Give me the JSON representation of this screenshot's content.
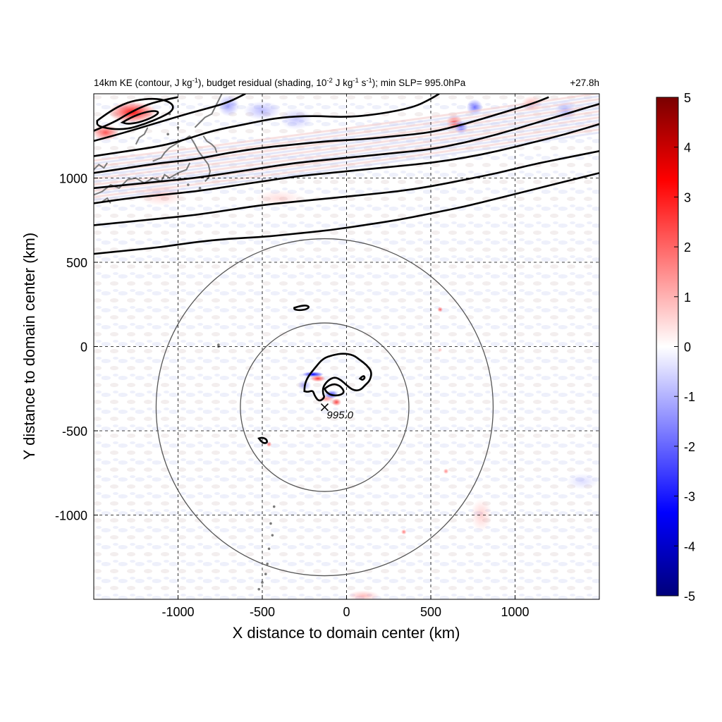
{
  "chart_data": {
    "type": "heatmap",
    "title_main": "14km KE (contour, J kg",
    "title_sup1": "-1",
    "title_mid1": "), budget residual (shading, 10",
    "title_sup2": "-2",
    "title_mid2": " J kg",
    "title_sup3": "-1",
    "title_mid3": " s",
    "title_sup4": "-1",
    "title_end": "); min SLP= 995.0hPa",
    "time_label": "+27.8h",
    "xlabel": "X distance to domain center (km)",
    "ylabel": "Y distance to domain center (km)",
    "xlim": [
      -1500,
      1500
    ],
    "ylim": [
      -1500,
      1500
    ],
    "x_ticks": [
      -1000,
      -500,
      0,
      500,
      1000
    ],
    "x_tick_labels": [
      "-1000",
      "-500",
      "0",
      "500",
      "1000"
    ],
    "y_ticks": [
      -1000,
      -500,
      0,
      500,
      1000
    ],
    "y_tick_labels": [
      "-1000",
      "-500",
      "0",
      "500",
      "1000"
    ],
    "grid": true,
    "colorbar": {
      "range": [
        -5,
        5
      ],
      "ticks": [
        5,
        4,
        3,
        2,
        1,
        0,
        -1,
        -2,
        -3,
        -4,
        -5
      ],
      "tick_labels": [
        "5",
        "4",
        "3",
        "2",
        "1",
        "0",
        "-1",
        "-2",
        "-3",
        "-4",
        "-5"
      ],
      "colors": [
        "#00007a",
        "#0000ff",
        "#7f7fff",
        "#ffffff",
        "#ff7f7f",
        "#ff0000",
        "#7a0000"
      ]
    },
    "storm_center": {
      "x": -130,
      "y": -360,
      "label": "995.0"
    },
    "range_circles": {
      "center": [
        -130,
        -360
      ],
      "radii_km": [
        500,
        1000
      ]
    },
    "residual_features": [
      {
        "x": -200,
        "y": -165,
        "sx": 40,
        "sy": 10,
        "value": -4.8
      },
      {
        "x": -170,
        "y": -190,
        "sx": 28,
        "sy": 12,
        "value": 3.5
      },
      {
        "x": -90,
        "y": -285,
        "sx": 25,
        "sy": 16,
        "value": -3.5
      },
      {
        "x": -60,
        "y": -330,
        "sx": 18,
        "sy": 14,
        "value": 3.2
      },
      {
        "x": -120,
        "y": -310,
        "sx": 30,
        "sy": 12,
        "value": 2.0
      },
      {
        "x": -250,
        "y": -230,
        "sx": 25,
        "sy": 20,
        "value": -1.5
      },
      {
        "x": -460,
        "y": -580,
        "sx": 10,
        "sy": 10,
        "value": 2.6
      },
      {
        "x": 555,
        "y": 220,
        "sx": 10,
        "sy": 10,
        "value": 2.8
      },
      {
        "x": 555,
        "y": -20,
        "sx": 8,
        "sy": 8,
        "value": 1.2
      },
      {
        "x": 590,
        "y": -740,
        "sx": 10,
        "sy": 10,
        "value": 2.2
      },
      {
        "x": 340,
        "y": -1100,
        "sx": 10,
        "sy": 10,
        "value": 2.4
      },
      {
        "x": 800,
        "y": -1000,
        "sx": 40,
        "sy": 60,
        "value": 0.8
      },
      {
        "x": -1270,
        "y": 1390,
        "sx": 90,
        "sy": 40,
        "value": 4.2
      },
      {
        "x": -1430,
        "y": 1270,
        "sx": 50,
        "sy": 30,
        "value": 3.0
      },
      {
        "x": -700,
        "y": 1430,
        "sx": 40,
        "sy": 40,
        "value": -1.6
      },
      {
        "x": -500,
        "y": 1400,
        "sx": 70,
        "sy": 35,
        "value": -1.2
      },
      {
        "x": -300,
        "y": 1350,
        "sx": 60,
        "sy": 40,
        "value": -1.0
      },
      {
        "x": 640,
        "y": 1330,
        "sx": 30,
        "sy": 30,
        "value": 3.2
      },
      {
        "x": 680,
        "y": 1300,
        "sx": 25,
        "sy": 25,
        "value": -3.0
      },
      {
        "x": 760,
        "y": 1420,
        "sx": 30,
        "sy": 30,
        "value": -2.4
      },
      {
        "x": 1300,
        "y": 1400,
        "sx": 40,
        "sy": 40,
        "value": -1.4
      },
      {
        "x": 1100,
        "y": 1440,
        "sx": 40,
        "sy": 30,
        "value": 1.4
      },
      {
        "x": -1100,
        "y": 900,
        "sx": 90,
        "sy": 40,
        "value": 0.8
      },
      {
        "x": -400,
        "y": 880,
        "sx": 90,
        "sy": 30,
        "value": 0.6
      },
      {
        "x": 100,
        "y": -1480,
        "sx": 60,
        "sy": 20,
        "value": 1.2
      },
      {
        "x": 1400,
        "y": -800,
        "sx": 60,
        "sy": 30,
        "value": -0.6
      }
    ],
    "contours": {
      "outer_jets": [
        [
          [
            -1500,
            1280
          ],
          [
            -1380,
            1330
          ],
          [
            -1300,
            1380
          ],
          [
            -1200,
            1430
          ],
          [
            -1100,
            1460
          ],
          [
            -1000,
            1480
          ]
        ],
        [
          [
            -1500,
            1220
          ],
          [
            -1350,
            1260
          ],
          [
            -1150,
            1320
          ],
          [
            -950,
            1380
          ],
          [
            -800,
            1420
          ],
          [
            -700,
            1450
          ],
          [
            -600,
            1500
          ]
        ],
        [
          [
            -1500,
            1130
          ],
          [
            -1300,
            1160
          ],
          [
            -1100,
            1190
          ],
          [
            -950,
            1230
          ],
          [
            -800,
            1280
          ],
          [
            -600,
            1320
          ],
          [
            -400,
            1360
          ],
          [
            -200,
            1370
          ],
          [
            0,
            1360
          ],
          [
            200,
            1380
          ],
          [
            400,
            1420
          ],
          [
            500,
            1470
          ],
          [
            550,
            1500
          ]
        ],
        [
          [
            -1500,
            1030
          ],
          [
            -1300,
            1060
          ],
          [
            -1100,
            1090
          ],
          [
            -900,
            1110
          ],
          [
            -700,
            1150
          ],
          [
            -500,
            1180
          ],
          [
            -300,
            1200
          ],
          [
            -100,
            1220
          ],
          [
            100,
            1230
          ],
          [
            300,
            1250
          ],
          [
            500,
            1270
          ],
          [
            700,
            1320
          ],
          [
            900,
            1380
          ],
          [
            1100,
            1440
          ],
          [
            1200,
            1480
          ]
        ],
        [
          [
            -1500,
            940
          ],
          [
            -1300,
            960
          ],
          [
            -1100,
            980
          ],
          [
            -900,
            1000
          ],
          [
            -700,
            1030
          ],
          [
            -500,
            1060
          ],
          [
            -300,
            1090
          ],
          [
            -100,
            1110
          ],
          [
            100,
            1130
          ],
          [
            300,
            1150
          ],
          [
            500,
            1170
          ],
          [
            700,
            1210
          ],
          [
            900,
            1260
          ],
          [
            1100,
            1320
          ],
          [
            1300,
            1380
          ],
          [
            1500,
            1440
          ]
        ],
        [
          [
            -1500,
            850
          ],
          [
            -1300,
            880
          ],
          [
            -1100,
            900
          ],
          [
            -900,
            920
          ],
          [
            -700,
            950
          ],
          [
            -500,
            980
          ],
          [
            -300,
            1010
          ],
          [
            -100,
            1030
          ],
          [
            100,
            1050
          ],
          [
            300,
            1070
          ],
          [
            500,
            1090
          ],
          [
            700,
            1120
          ],
          [
            900,
            1160
          ],
          [
            1100,
            1210
          ],
          [
            1300,
            1260
          ],
          [
            1500,
            1320
          ]
        ],
        [
          [
            -1500,
            720
          ],
          [
            -1300,
            740
          ],
          [
            -1100,
            760
          ],
          [
            -900,
            780
          ],
          [
            -700,
            810
          ],
          [
            -500,
            840
          ],
          [
            -300,
            860
          ],
          [
            -100,
            880
          ],
          [
            100,
            900
          ],
          [
            300,
            920
          ],
          [
            500,
            950
          ],
          [
            700,
            990
          ],
          [
            900,
            1030
          ],
          [
            1100,
            1080
          ],
          [
            1300,
            1120
          ],
          [
            1500,
            1160
          ]
        ],
        [
          [
            -1500,
            550
          ],
          [
            -1300,
            570
          ],
          [
            -1100,
            590
          ],
          [
            -900,
            620
          ],
          [
            -700,
            640
          ],
          [
            -500,
            650
          ],
          [
            -300,
            670
          ],
          [
            -100,
            690
          ],
          [
            100,
            720
          ],
          [
            300,
            750
          ],
          [
            500,
            790
          ],
          [
            700,
            830
          ],
          [
            900,
            880
          ],
          [
            1100,
            930
          ],
          [
            1300,
            980
          ],
          [
            1500,
            1030
          ]
        ]
      ],
      "closed": [
        [
          [
            -1330,
            1330
          ],
          [
            -1280,
            1360
          ],
          [
            -1200,
            1390
          ],
          [
            -1140,
            1400
          ],
          [
            -1110,
            1390
          ],
          [
            -1150,
            1360
          ],
          [
            -1230,
            1330
          ],
          [
            -1300,
            1320
          ],
          [
            -1330,
            1330
          ]
        ],
        [
          [
            -1480,
            1340
          ],
          [
            -1400,
            1400
          ],
          [
            -1300,
            1450
          ],
          [
            -1200,
            1470
          ],
          [
            -1100,
            1470
          ],
          [
            -1030,
            1440
          ],
          [
            -1030,
            1400
          ],
          [
            -1100,
            1360
          ],
          [
            -1200,
            1320
          ],
          [
            -1300,
            1290
          ],
          [
            -1400,
            1290
          ],
          [
            -1480,
            1310
          ],
          [
            -1480,
            1340
          ]
        ],
        [
          [
            -310,
            230
          ],
          [
            -280,
            240
          ],
          [
            -240,
            245
          ],
          [
            -220,
            235
          ],
          [
            -240,
            220
          ],
          [
            -280,
            215
          ],
          [
            -310,
            220
          ],
          [
            -310,
            230
          ]
        ],
        [
          [
            -250,
            -265
          ],
          [
            -250,
            -230
          ],
          [
            -230,
            -180
          ],
          [
            -190,
            -130
          ],
          [
            -140,
            -70
          ],
          [
            -80,
            -50
          ],
          [
            -20,
            -40
          ],
          [
            40,
            -50
          ],
          [
            80,
            -80
          ],
          [
            120,
            -110
          ],
          [
            150,
            -150
          ],
          [
            140,
            -200
          ],
          [
            110,
            -230
          ],
          [
            80,
            -260
          ],
          [
            40,
            -260
          ],
          [
            0,
            -230
          ],
          [
            -30,
            -200
          ],
          [
            -70,
            -180
          ],
          [
            -110,
            -200
          ],
          [
            -140,
            -240
          ],
          [
            -140,
            -280
          ],
          [
            -130,
            -300
          ],
          [
            -150,
            -320
          ],
          [
            -170,
            -320
          ],
          [
            -190,
            -290
          ],
          [
            -200,
            -260
          ],
          [
            -230,
            -270
          ],
          [
            -250,
            -265
          ]
        ],
        [
          [
            -130,
            -250
          ],
          [
            -90,
            -220
          ],
          [
            -40,
            -230
          ],
          [
            -10,
            -270
          ],
          [
            -40,
            -290
          ],
          [
            -90,
            -290
          ],
          [
            -120,
            -270
          ],
          [
            -130,
            -250
          ]
        ],
        [
          [
            80,
            -190
          ],
          [
            100,
            -170
          ],
          [
            110,
            -185
          ],
          [
            95,
            -200
          ],
          [
            80,
            -190
          ]
        ],
        [
          [
            -520,
            -545
          ],
          [
            -510,
            -560
          ],
          [
            -490,
            -575
          ],
          [
            -470,
            -570
          ],
          [
            -475,
            -550
          ],
          [
            -500,
            -540
          ],
          [
            -520,
            -545
          ]
        ]
      ]
    },
    "coastline": [
      [
        [
          -1500,
          900
        ],
        [
          -1450,
          920
        ],
        [
          -1400,
          960
        ],
        [
          -1350,
          940
        ],
        [
          -1300,
          990
        ],
        [
          -1250,
          1000
        ],
        [
          -1200,
          970
        ],
        [
          -1150,
          1000
        ],
        [
          -1100,
          980
        ]
      ],
      [
        [
          -1100,
          980
        ],
        [
          -1080,
          1020
        ],
        [
          -1050,
          1000
        ],
        [
          -1000,
          1030
        ],
        [
          -950,
          1050
        ],
        [
          -930,
          1090
        ]
      ],
      [
        [
          -1150,
          1100
        ],
        [
          -1100,
          1120
        ],
        [
          -1080,
          1150
        ],
        [
          -1050,
          1180
        ],
        [
          -1000,
          1210
        ],
        [
          -960,
          1230
        ],
        [
          -930,
          1250
        ]
      ],
      [
        [
          -930,
          1250
        ],
        [
          -900,
          1200
        ],
        [
          -880,
          1160
        ],
        [
          -850,
          1120
        ],
        [
          -820,
          1080
        ],
        [
          -810,
          1040
        ],
        [
          -820,
          1000
        ],
        [
          -840,
          980
        ]
      ],
      [
        [
          -900,
          1300
        ],
        [
          -870,
          1330
        ],
        [
          -840,
          1360
        ],
        [
          -800,
          1380
        ],
        [
          -780,
          1420
        ],
        [
          -760,
          1460
        ],
        [
          -740,
          1500
        ]
      ],
      [
        [
          -850,
          1250
        ],
        [
          -830,
          1220
        ],
        [
          -800,
          1200
        ],
        [
          -780,
          1180
        ],
        [
          -770,
          1150
        ]
      ],
      [
        [
          -1250,
          1200
        ],
        [
          -1230,
          1240
        ],
        [
          -1200,
          1260
        ],
        [
          -1180,
          1300
        ]
      ],
      [
        [
          -1500,
          1050
        ],
        [
          -1470,
          1080
        ],
        [
          -1440,
          1060
        ],
        [
          -1420,
          1090
        ]
      ],
      [
        [
          -1450,
          860
        ],
        [
          -1420,
          880
        ],
        [
          -1400,
          850
        ]
      ]
    ],
    "coast_dots": [
      [
        -760,
        10
      ],
      [
        -760,
        0
      ],
      [
        -430,
        -950
      ],
      [
        -450,
        -1050
      ],
      [
        -440,
        -1120
      ],
      [
        -460,
        -1200
      ],
      [
        -470,
        -1290
      ],
      [
        -480,
        -1350
      ],
      [
        -500,
        -1400
      ],
      [
        -520,
        -1440
      ],
      [
        -1050,
        1380
      ],
      [
        -1000,
        1300
      ],
      [
        -1060,
        1260
      ],
      [
        -940,
        960
      ],
      [
        -870,
        940
      ]
    ]
  }
}
